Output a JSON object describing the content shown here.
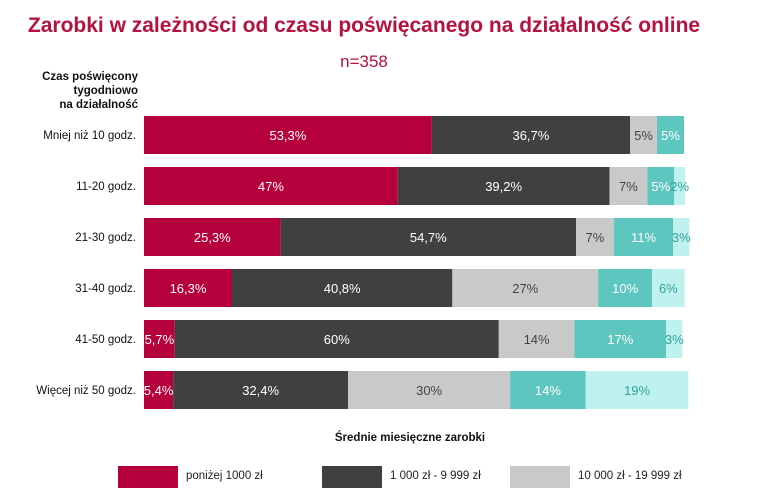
{
  "title": "Zarobki w zależności od czasu poświęcanego na działalność online",
  "subtitle": "n=358",
  "y_axis_title": [
    "Czas poświęcony",
    "tygodniowo",
    "na działalność"
  ],
  "legend_title": "Średnie miesięczne zarobki",
  "colors": {
    "title": "#b5123e",
    "series": [
      "#b5003c",
      "#404042",
      "#c9c9c9",
      "#5dc6bf",
      "#bff1ee"
    ],
    "label_light": "#ffffff",
    "label_dark": "#444444",
    "label_teal_dark": "#2fa39b"
  },
  "chart_data": {
    "type": "bar",
    "orientation": "horizontal",
    "stacked": true,
    "categories": [
      "Mniej niż 10 godz.",
      "11-20 godz.",
      "21-30 godz.",
      "31-40 godz.",
      "41-50 godz.",
      "Więcej niż 50 godz."
    ],
    "series": [
      {
        "name": "poniżej 1000 zł",
        "values": [
          53.3,
          47,
          25.3,
          16.3,
          5.7,
          5.4
        ],
        "labels": [
          "53,3%",
          "47%",
          "25,3%",
          "16,3%",
          "5,7%",
          "5,4%"
        ]
      },
      {
        "name": "1 000 zł - 9 999 zł",
        "values": [
          36.7,
          39.2,
          54.7,
          40.8,
          60,
          32.4
        ],
        "labels": [
          "36,7%",
          "39,2%",
          "54,7%",
          "40,8%",
          "60%",
          "32,4%"
        ]
      },
      {
        "name": "10 000 zł - 19 999 zł",
        "values": [
          5,
          7,
          7,
          27,
          14,
          30
        ],
        "labels": [
          "5%",
          "7%",
          "7%",
          "27%",
          "14%",
          "30%"
        ]
      },
      {
        "values": [
          5,
          5,
          11,
          10,
          17,
          14
        ],
        "labels": [
          "5%",
          "5%",
          "11%",
          "10%",
          "17%",
          "14%"
        ]
      },
      {
        "values": [
          0,
          2,
          3,
          6,
          3,
          19
        ],
        "labels": [
          "",
          "2%",
          "3%",
          "6%",
          "3%",
          "19%"
        ]
      }
    ],
    "xlim": [
      0,
      100
    ],
    "legend_position": "bottom"
  }
}
